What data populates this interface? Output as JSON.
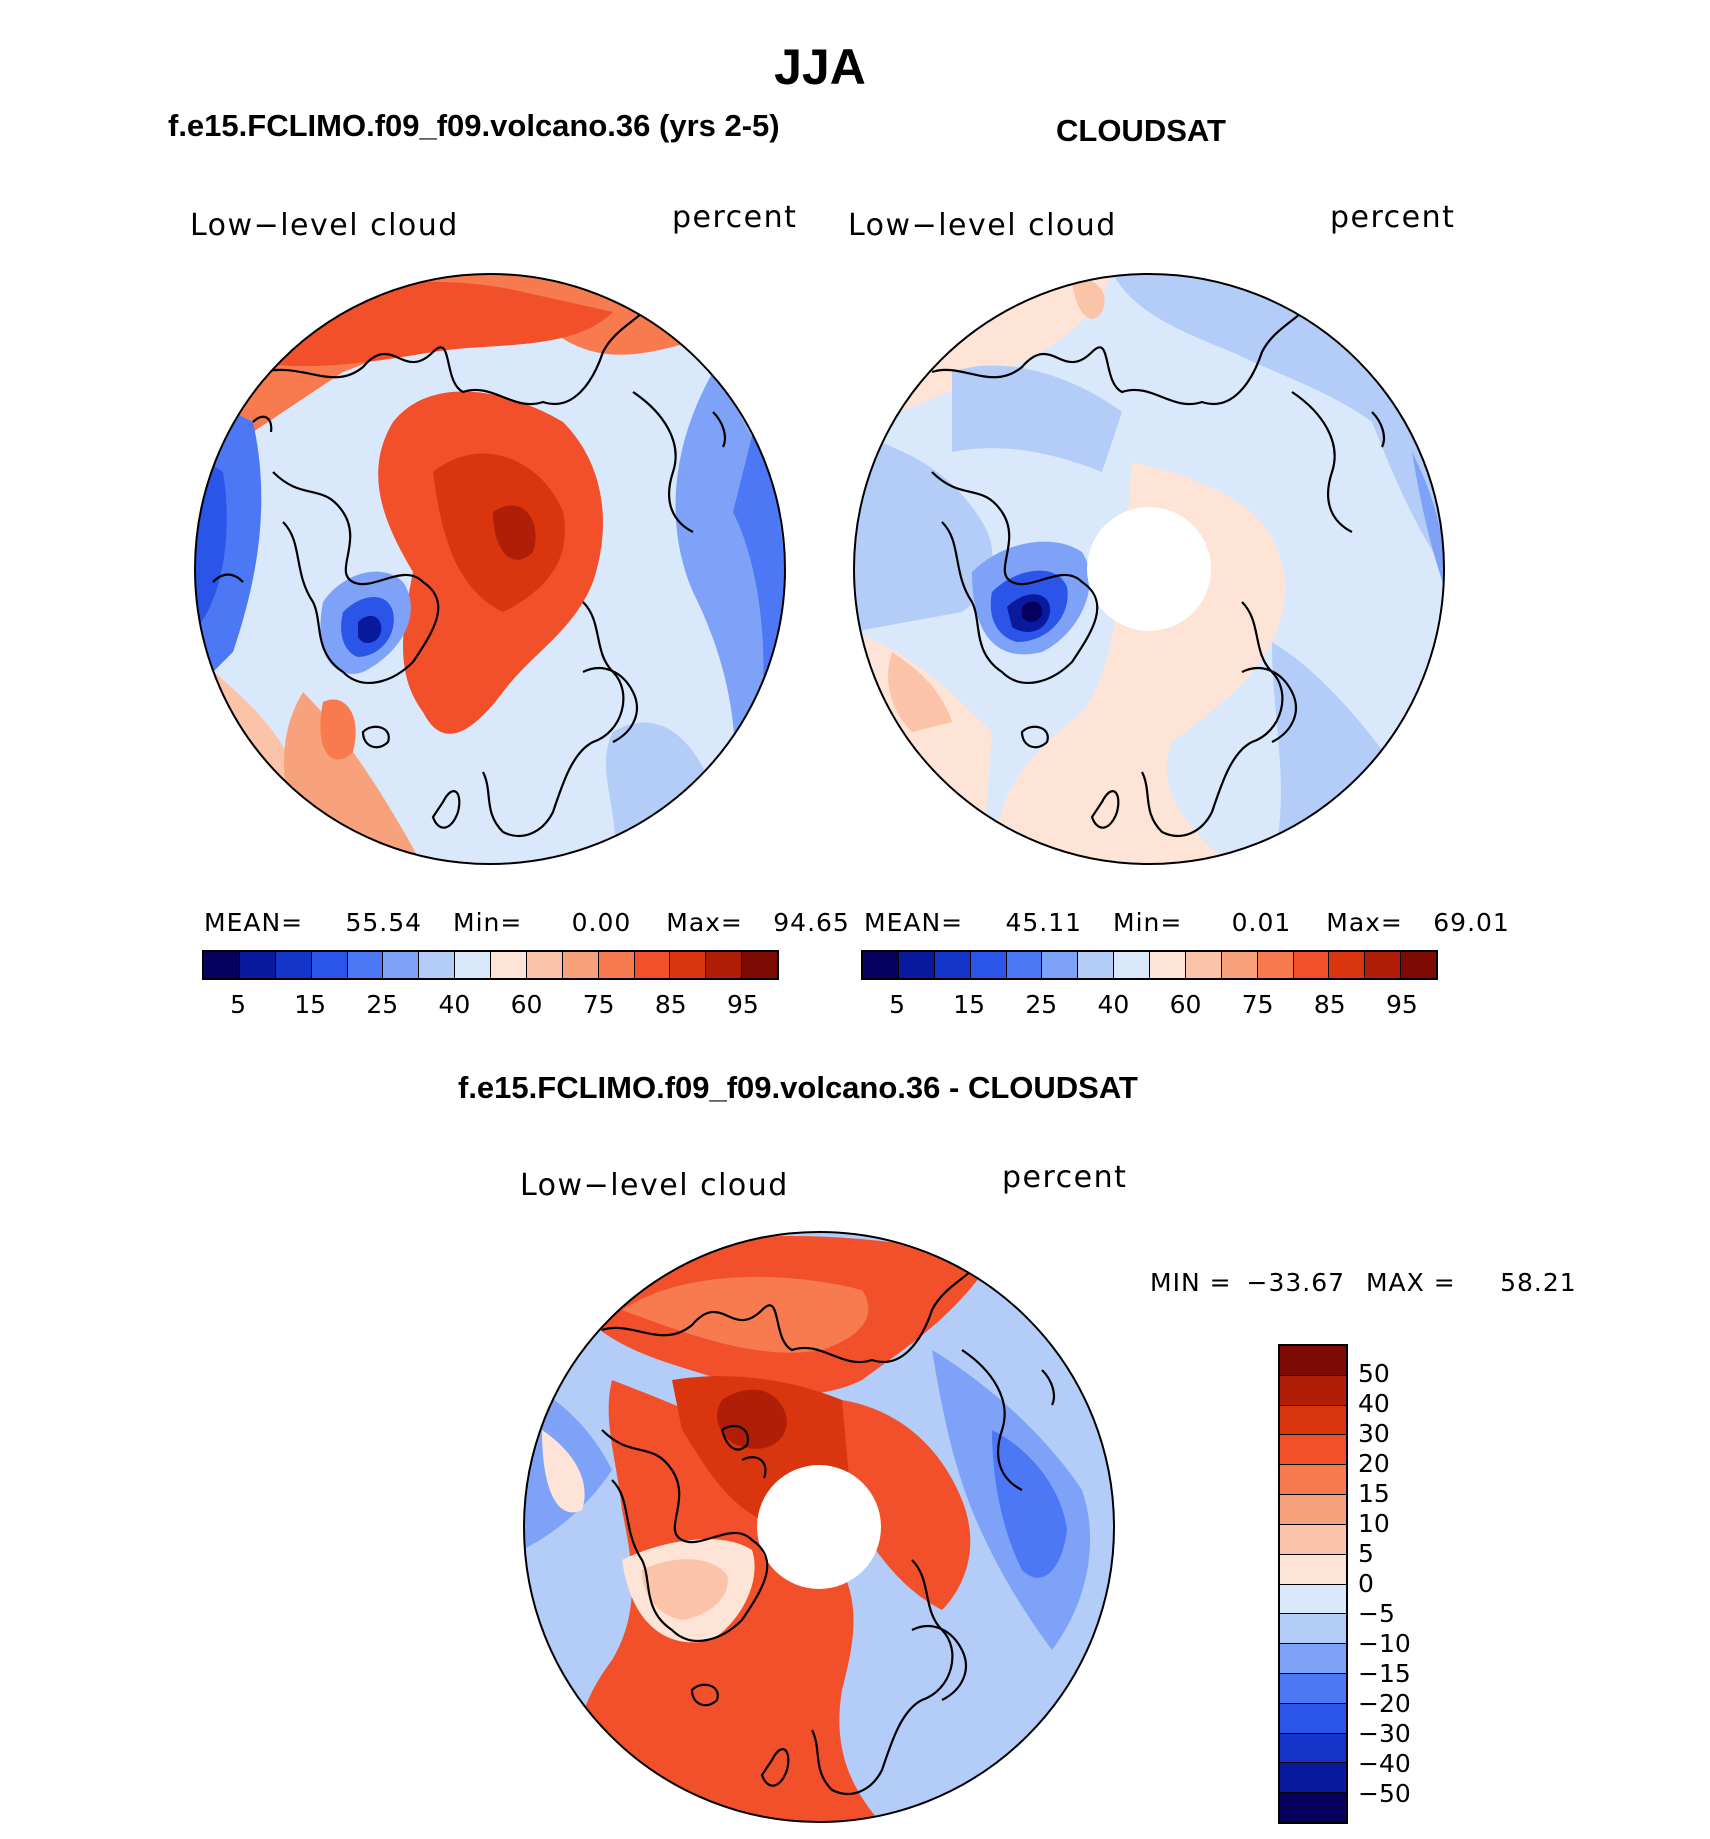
{
  "figure": {
    "season": "JJA",
    "panels": [
      {
        "title": "f.e15.FCLIMO.f09_f09.volcano.36 (yrs 2-5)",
        "variable": "Low−level cloud",
        "units": "percent",
        "stats": {
          "mean_label": "MEAN=",
          "mean": "55.54",
          "min_label": "Min=",
          "min": "0.00",
          "max_label": "Max=",
          "max": "94.65"
        }
      },
      {
        "title": "CLOUDSAT",
        "variable": "Low−level cloud",
        "units": "percent",
        "stats": {
          "mean_label": "MEAN=",
          "mean": "45.11",
          "min_label": "Min=",
          "min": "0.01",
          "max_label": "Max=",
          "max": "69.01"
        }
      },
      {
        "title": "f.e15.FCLIMO.f09_f09.volcano.36 - CLOUDSAT",
        "variable": "Low−level cloud",
        "units": "percent",
        "stats": {
          "min_label": "MIN =",
          "min": "−33.67",
          "max_label": "MAX =",
          "max": "58.21"
        }
      }
    ],
    "abs_colorbar": {
      "ticks": [
        "5",
        "15",
        "25",
        "40",
        "60",
        "75",
        "85",
        "95"
      ],
      "colors": [
        "#06005e",
        "#0a1a9e",
        "#1335c8",
        "#2a55e8",
        "#4d78f5",
        "#7ea2f7",
        "#b4ccf8",
        "#dae8fb",
        "#fde4d6",
        "#fbc3a8",
        "#f8a27d",
        "#f77b4e",
        "#f2502a",
        "#d9360f",
        "#b01e07",
        "#7e0a04"
      ]
    },
    "diff_colorbar": {
      "labels": [
        "50",
        "40",
        "30",
        "20",
        "15",
        "10",
        "5",
        "0",
        "−5",
        "−10",
        "−15",
        "−20",
        "−30",
        "−40",
        "−50"
      ],
      "colors": [
        "#7e0a04",
        "#b01e07",
        "#d9360f",
        "#f2502a",
        "#f77b4e",
        "#f8a27d",
        "#fbc3a8",
        "#fde4d6",
        "#dae8fb",
        "#b4ccf8",
        "#7ea2f7",
        "#4d78f5",
        "#2a55e8",
        "#1335c8",
        "#0a1a9e",
        "#06005e"
      ]
    }
  }
}
